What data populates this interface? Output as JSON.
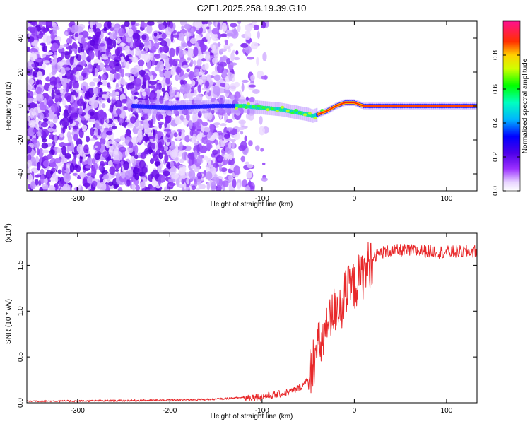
{
  "title": "C2E1.2025.258.19.39.G10",
  "chart_data": [
    {
      "type": "heatmap",
      "title": "C2E1.2025.258.19.39.G10",
      "xlabel": "Height of straight line (km)",
      "ylabel": "Frequency (Hz)",
      "xlim": [
        -355,
        133
      ],
      "ylim": [
        -50,
        50
      ],
      "xticks": [
        -300,
        -200,
        -100,
        0,
        100
      ],
      "xtick_labels": [
        "-300",
        "-200",
        "-100",
        "0",
        "100"
      ],
      "yticks": [
        -40,
        -20,
        0,
        20,
        40
      ],
      "ytick_labels": [
        "-40",
        "-20",
        "0",
        "20",
        "40"
      ],
      "colorbar": {
        "label": "Normalized spectral amplitude",
        "range": [
          0,
          1
        ],
        "ticks": [
          0.0,
          0.2,
          0.4,
          0.6,
          0.8
        ],
        "tick_labels": [
          "0.0",
          "0.2",
          "0.4",
          "0.6",
          "0.8"
        ],
        "colormap": "rainbow (white-violet-blue-cyan-green-yellow-red-magenta)"
      },
      "ridge": {
        "description": "dominant Doppler frequency ridge",
        "x": [
          -240,
          -200,
          -150,
          -120,
          -100,
          -80,
          -60,
          -50,
          -45,
          -40,
          -30,
          -20,
          -10,
          0,
          10,
          50,
          133
        ],
        "y": [
          0,
          -1,
          0,
          0,
          -1,
          -2,
          -4,
          -5,
          -6,
          -5,
          -3,
          0,
          2,
          2,
          0,
          0,
          0
        ]
      }
    },
    {
      "type": "line",
      "xlabel": "Height of straight line (km)",
      "ylabel": "SNR (10 * v/v)",
      "y_multiplier_label": "(x10",
      "y_multiplier_exp": "4",
      "xlim": [
        -355,
        133
      ],
      "ylim": [
        0,
        1.85
      ],
      "xticks": [
        -300,
        -200,
        -100,
        0,
        100
      ],
      "xtick_labels": [
        "-300",
        "-200",
        "-100",
        "0",
        "100"
      ],
      "yticks": [
        0,
        0.5,
        1.0,
        1.5
      ],
      "ytick_labels": [
        "0.0",
        "0.5",
        "1.0",
        "1.5"
      ],
      "color": "#e8282a",
      "x": [
        -355,
        -300,
        -200,
        -150,
        -120,
        -100,
        -80,
        -65,
        -55,
        -50,
        -45,
        -40,
        -35,
        -30,
        -25,
        -20,
        -15,
        -10,
        -5,
        0,
        5,
        10,
        15,
        20,
        30,
        50,
        80,
        100,
        133
      ],
      "y": [
        0.02,
        0.02,
        0.03,
        0.04,
        0.06,
        0.07,
        0.1,
        0.14,
        0.2,
        0.3,
        0.48,
        0.62,
        0.7,
        0.8,
        0.95,
        1.08,
        1.12,
        1.2,
        1.27,
        1.3,
        1.38,
        1.44,
        1.52,
        1.6,
        1.65,
        1.67,
        1.66,
        1.65,
        1.66
      ]
    }
  ]
}
